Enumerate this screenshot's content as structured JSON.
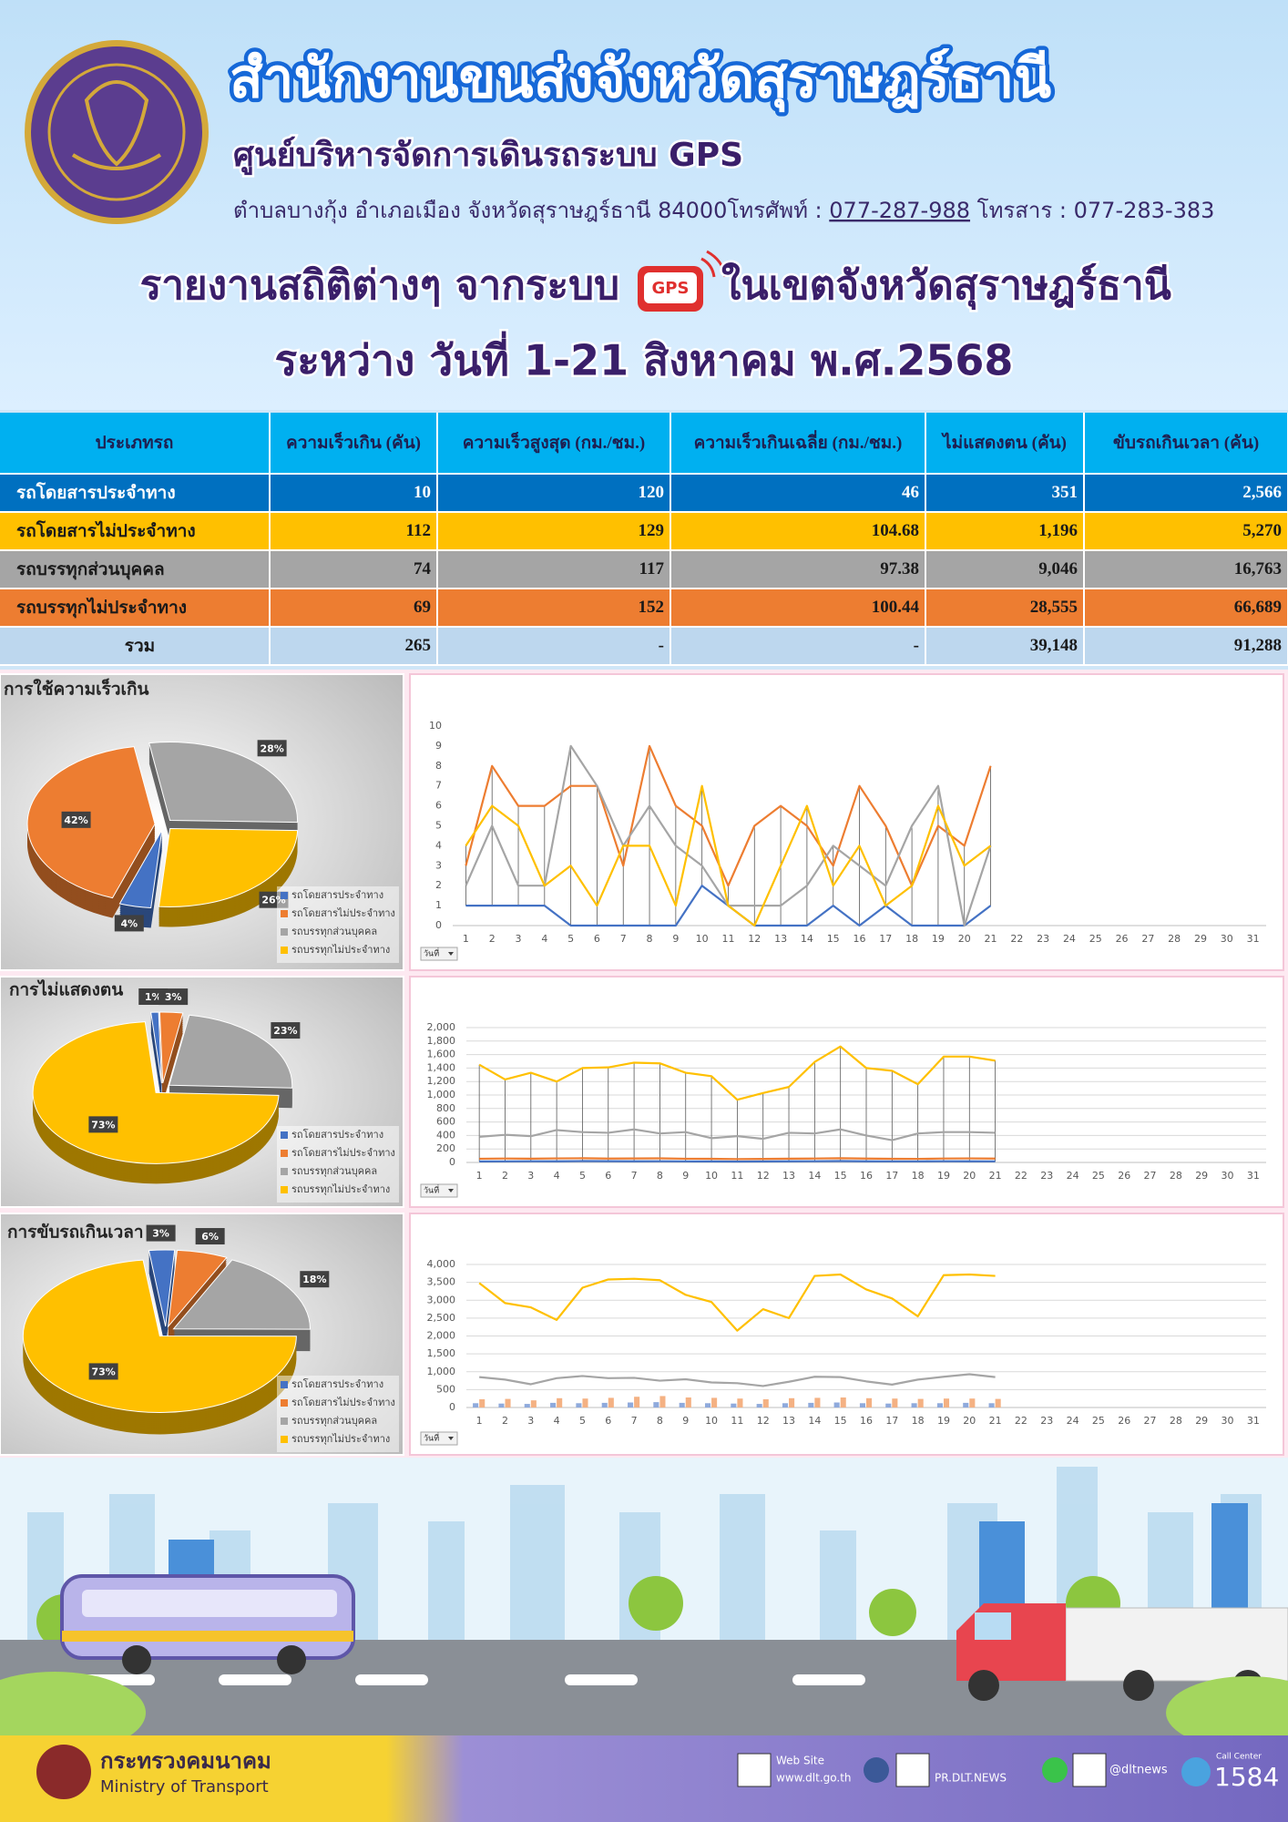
{
  "header": {
    "title": "สำนักงานขนส่งจังหวัดสุราษฎร์ธานี",
    "subtitle": "ศูนย์บริหารจัดการเดินรถระบบ GPS",
    "address": "ตำบลบางกุ้ง อำเภอเมือง จังหวัดสุราษฎร์ธานี 84000โทรศัพท์ :",
    "phone": "077-287-988",
    "fax": "โทรสาร : 077-283-383",
    "report_title": "รายงานสถิติต่างๆ จากระบบ",
    "badge": "GPS",
    "report_area": "ในเขตจังหวัดสุราษฎร์ธานี",
    "period": "ระหว่าง วันที่ 1-21 สิงหาคม พ.ศ.2568"
  },
  "table": {
    "columns": [
      "ประเภทรถ",
      "ความเร็วเกิน (คัน)",
      "ความเร็วสูงสุด (กม./ชม.)",
      "ความเร็วเกินเฉลี่ย (กม./ชม.)",
      "ไม่แสดงตน (คัน)",
      "ขับรถเกินเวลา (คัน)"
    ],
    "rows": [
      [
        "รถโดยสารประจำทาง",
        "10",
        "120",
        "46",
        "351",
        "2,566"
      ],
      [
        "รถโดยสารไม่ประจำทาง",
        "112",
        "129",
        "104.68",
        "1,196",
        "5,270"
      ],
      [
        "รถบรรทุกส่วนบุคคล",
        "74",
        "117",
        "97.38",
        "9,046",
        "16,763"
      ],
      [
        "รถบรรทุกไม่ประจำทาง",
        "69",
        "152",
        "100.44",
        "28,555",
        "66,689"
      ],
      [
        "รวม",
        "265",
        "-",
        "-",
        "39,148",
        "91,288"
      ]
    ]
  },
  "chart_data": [
    {
      "type": "pie",
      "title": "การใช้ความเร็วเกิน",
      "categories": [
        "รถโดยสารประจำทาง",
        "รถโดยสารไม่ประจำทาง",
        "รถบรรทุกส่วนบุคคล",
        "รถบรรทุกไม่ประจำทาง"
      ],
      "values": [
        4,
        42,
        28,
        26
      ],
      "value_labels": [
        "4%",
        "42%",
        "28%",
        "26%"
      ],
      "colors": [
        "#4472c4",
        "#ed7d31",
        "#a5a5a5",
        "#ffc000"
      ],
      "legend": "lower right"
    },
    {
      "type": "line",
      "filter_label": "วันที่",
      "categories": [
        1,
        2,
        3,
        4,
        5,
        6,
        7,
        8,
        9,
        10,
        11,
        12,
        13,
        14,
        15,
        16,
        17,
        18,
        19,
        20,
        21,
        22,
        23,
        24,
        25,
        26,
        27,
        28,
        29,
        30,
        31
      ],
      "ylim": [
        0,
        10
      ],
      "yticks": [
        0,
        1,
        2,
        3,
        4,
        5,
        6,
        7,
        8,
        9,
        10
      ],
      "grid": false,
      "high_low_lines": true,
      "series": [
        {
          "color": "#4472c4",
          "values": [
            1,
            1,
            1,
            1,
            0,
            0,
            0,
            0,
            0,
            2,
            1,
            0,
            0,
            0,
            1,
            0,
            1,
            0,
            0,
            0,
            1,
            null,
            null,
            null,
            null,
            null,
            null,
            null,
            null,
            null,
            null
          ]
        },
        {
          "color": "#ed7d31",
          "values": [
            3,
            8,
            6,
            6,
            7,
            7,
            3,
            9,
            6,
            5,
            2,
            5,
            6,
            5,
            3,
            7,
            5,
            2,
            5,
            4,
            8,
            null,
            null,
            null,
            null,
            null,
            null,
            null,
            null,
            null,
            null
          ]
        },
        {
          "color": "#a5a5a5",
          "values": [
            2,
            5,
            2,
            2,
            9,
            7,
            4,
            6,
            4,
            3,
            1,
            1,
            1,
            2,
            4,
            3,
            2,
            5,
            7,
            0,
            4,
            null,
            null,
            null,
            null,
            null,
            null,
            null,
            null,
            null,
            null
          ]
        },
        {
          "color": "#ffc000",
          "values": [
            4,
            6,
            5,
            2,
            3,
            1,
            4,
            4,
            1,
            7,
            1,
            0,
            3,
            6,
            2,
            4,
            1,
            2,
            6,
            3,
            4,
            null,
            null,
            null,
            null,
            null,
            null,
            null,
            null,
            null,
            null
          ]
        }
      ]
    },
    {
      "type": "pie",
      "title": "การไม่แสดงตน",
      "categories": [
        "รถโดยสารประจำทาง",
        "รถโดยสารไม่ประจำทาง",
        "รถบรรทุกส่วนบุคคล",
        "รถบรรทุกไม่ประจำทาง"
      ],
      "values": [
        1,
        3,
        23,
        73
      ],
      "value_labels": [
        "1%",
        "3%",
        "23%",
        "73%"
      ],
      "colors": [
        "#4472c4",
        "#ed7d31",
        "#a5a5a5",
        "#ffc000"
      ],
      "legend": "lower right"
    },
    {
      "type": "line",
      "filter_label": "วันที่",
      "categories": [
        1,
        2,
        3,
        4,
        5,
        6,
        7,
        8,
        9,
        10,
        11,
        12,
        13,
        14,
        15,
        16,
        17,
        18,
        19,
        20,
        21,
        22,
        23,
        24,
        25,
        26,
        27,
        28,
        29,
        30,
        31
      ],
      "ylim": [
        0,
        2000
      ],
      "yticks": [
        0,
        200,
        400,
        600,
        800,
        {
          "value": 1000,
          "label": "1,000"
        },
        {
          "value": 1200,
          "label": "1,200"
        },
        {
          "value": 1400,
          "label": "1,400"
        },
        {
          "value": 1600,
          "label": "1,600"
        },
        {
          "value": 1800,
          "label": "1,800"
        },
        {
          "value": 2000,
          "label": "2,000"
        }
      ],
      "grid": true,
      "high_low_lines": true,
      "series": [
        {
          "color": "#4472c4",
          "values": [
            15,
            16,
            18,
            17,
            20,
            19,
            17,
            18,
            16,
            15,
            14,
            15,
            17,
            18,
            20,
            17,
            16,
            16,
            18,
            17,
            16,
            null,
            null,
            null,
            null,
            null,
            null,
            null,
            null,
            null,
            null
          ]
        },
        {
          "color": "#ed7d31",
          "values": [
            55,
            58,
            56,
            60,
            62,
            57,
            59,
            61,
            55,
            54,
            50,
            52,
            56,
            58,
            63,
            57,
            54,
            53,
            58,
            60,
            57,
            null,
            null,
            null,
            null,
            null,
            null,
            null,
            null,
            null,
            null
          ]
        },
        {
          "color": "#a5a5a5",
          "values": [
            380,
            410,
            390,
            480,
            450,
            440,
            490,
            430,
            450,
            360,
            390,
            350,
            440,
            430,
            490,
            400,
            330,
            430,
            450,
            450,
            440,
            null,
            null,
            null,
            null,
            null,
            null,
            null,
            null,
            null,
            null
          ]
        },
        {
          "color": "#ffc000",
          "values": [
            1450,
            1230,
            1330,
            1200,
            1400,
            1410,
            1480,
            1470,
            1330,
            1280,
            930,
            1030,
            1120,
            1490,
            1720,
            1400,
            1360,
            1160,
            1570,
            1570,
            1510,
            null,
            null,
            null,
            null,
            null,
            null,
            null,
            null,
            null,
            null
          ]
        }
      ]
    },
    {
      "type": "pie",
      "title": "การขับรถเกินเวลา",
      "categories": [
        "รถโดยสารประจำทาง",
        "รถโดยสารไม่ประจำทาง",
        "รถบรรทุกส่วนบุคคล",
        "รถบรรทุกไม่ประจำทาง"
      ],
      "values": [
        3,
        6,
        18,
        73
      ],
      "value_labels": [
        "3%",
        "6%",
        "18%",
        "73%"
      ],
      "colors": [
        "#4472c4",
        "#ed7d31",
        "#a5a5a5",
        "#ffc000"
      ],
      "legend": "lower right"
    },
    {
      "type": "combo",
      "filter_label": "วันที่",
      "categories": [
        1,
        2,
        3,
        4,
        5,
        6,
        7,
        8,
        9,
        10,
        11,
        12,
        13,
        14,
        15,
        16,
        17,
        18,
        19,
        20,
        21,
        22,
        23,
        24,
        25,
        26,
        27,
        28,
        29,
        30,
        31
      ],
      "ylim": [
        0,
        4000
      ],
      "yticks": [
        0,
        500,
        {
          "value": 1000,
          "label": "1,000"
        },
        {
          "value": 1500,
          "label": "1,500"
        },
        {
          "value": 2000,
          "label": "2,000"
        },
        {
          "value": 2500,
          "label": "2,500"
        },
        {
          "value": 3000,
          "label": "3,000"
        },
        {
          "value": 3500,
          "label": "3,500"
        },
        {
          "value": 4000,
          "label": "4,000"
        }
      ],
      "grid": true,
      "series": [
        {
          "type": "bar",
          "color": "#8faadc",
          "values": [
            120,
            110,
            100,
            130,
            120,
            130,
            140,
            150,
            130,
            120,
            110,
            100,
            120,
            130,
            140,
            120,
            110,
            120,
            120,
            130,
            120,
            null,
            null,
            null,
            null,
            null,
            null,
            null,
            null,
            null,
            null
          ]
        },
        {
          "type": "bar",
          "color": "#f4b183",
          "values": [
            230,
            240,
            200,
            260,
            250,
            270,
            300,
            320,
            280,
            270,
            250,
            230,
            260,
            270,
            280,
            260,
            250,
            240,
            250,
            250,
            240,
            null,
            null,
            null,
            null,
            null,
            null,
            null,
            null,
            null,
            null
          ]
        },
        {
          "type": "line",
          "color": "#a5a5a5",
          "values": [
            850,
            780,
            650,
            820,
            880,
            820,
            830,
            750,
            790,
            700,
            680,
            600,
            720,
            860,
            850,
            730,
            640,
            780,
            860,
            930,
            850,
            null,
            null,
            null,
            null,
            null,
            null,
            null,
            null,
            null,
            null
          ]
        },
        {
          "type": "line",
          "color": "#ffc000",
          "values": [
            3480,
            2920,
            2800,
            2450,
            3350,
            3580,
            3600,
            3560,
            3150,
            2950,
            2150,
            2750,
            2500,
            3680,
            3720,
            3300,
            3050,
            2550,
            3700,
            3720,
            3680,
            null,
            null,
            null,
            null,
            null,
            null,
            null,
            null,
            null,
            null
          ]
        }
      ]
    }
  ],
  "footer": {
    "ministry_th": "กระทรวงคมนาคม",
    "ministry_en": "Ministry of Transport",
    "web_label": "Web Site",
    "web": "www.dlt.go.th",
    "facebook": "PR.DLT.NEWS",
    "line": "@dltnews",
    "call_label": "Call Center",
    "call": "1584"
  }
}
